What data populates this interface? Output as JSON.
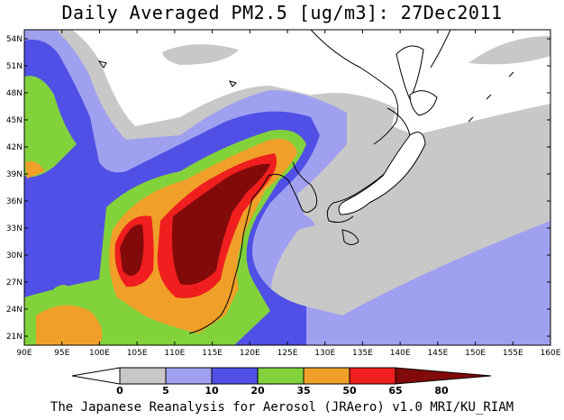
{
  "title": "Daily Averaged PM2.5 [ug/m3]: 27Dec2011",
  "footer": "The Japanese Reanalysis for Aerosol (JRAero) v1.0 MRI/KU_RIAM",
  "map": {
    "lon_range": [
      90,
      160
    ],
    "lat_range": [
      20,
      55
    ],
    "lon_ticks": [
      "90E",
      "95E",
      "100E",
      "105E",
      "110E",
      "115E",
      "120E",
      "125E",
      "130E",
      "135E",
      "140E",
      "145E",
      "150E",
      "155E",
      "160E"
    ],
    "lat_ticks": [
      "54N",
      "51N",
      "48N",
      "45N",
      "42N",
      "39N",
      "36N",
      "33N",
      "30N",
      "27N",
      "24N",
      "21N"
    ]
  },
  "colorbar": {
    "levels": [
      "0",
      "5",
      "10",
      "20",
      "35",
      "50",
      "65",
      "80"
    ],
    "colors": [
      "#ffffff",
      "#c8c8c8",
      "#a0a0f0",
      "#5050e6",
      "#82d23c",
      "#f0a028",
      "#f01e1e",
      "#820a0a"
    ]
  }
}
